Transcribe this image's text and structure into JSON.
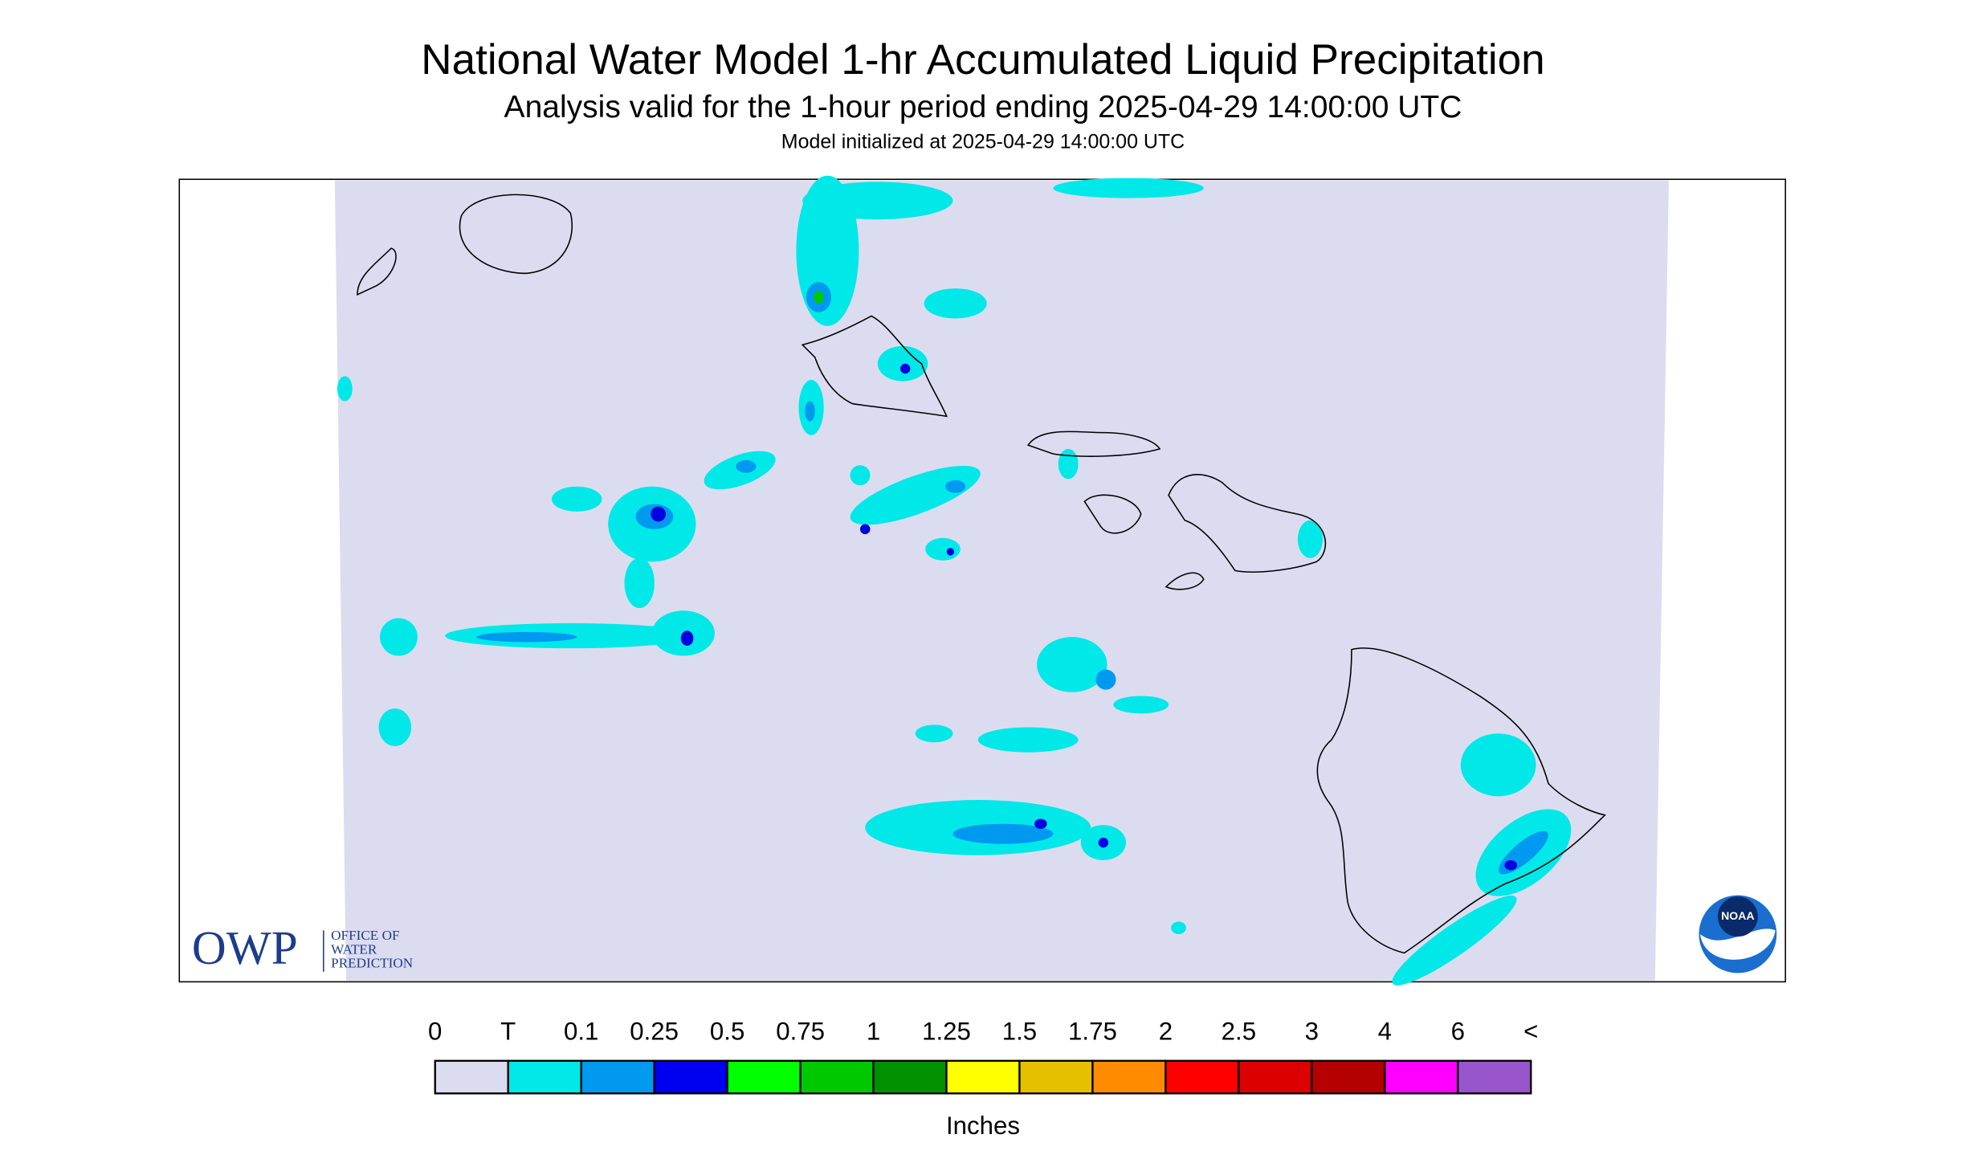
{
  "header": {
    "title": "National Water Model 1-hr Accumulated Liquid Precipitation",
    "subtitle": "Analysis valid for the 1-hour period ending 2025-04-29 14:00:00 UTC",
    "initialized": "Model initialized at 2025-04-29 14:00:00 UTC"
  },
  "legend": {
    "labels": [
      "0",
      "T",
      "0.1",
      "0.25",
      "0.5",
      "0.75",
      "1",
      "1.25",
      "1.5",
      "1.75",
      "2",
      "2.5",
      "3",
      "4",
      "6",
      "<"
    ],
    "colors": [
      "#dcdcf0",
      "#00e8e8",
      "#0099f0",
      "#0000f0",
      "#00ff00",
      "#00c800",
      "#009000",
      "#ffff00",
      "#e6c000",
      "#ff8c00",
      "#ff0000",
      "#dc0000",
      "#b40000",
      "#ff00ff",
      "#9955cc"
    ],
    "units": "Inches"
  },
  "logos": {
    "owp": "OWP",
    "owp_lines": [
      "OFFICE OF",
      "WATER",
      "PREDICTION"
    ],
    "noaa": "NOAA"
  }
}
